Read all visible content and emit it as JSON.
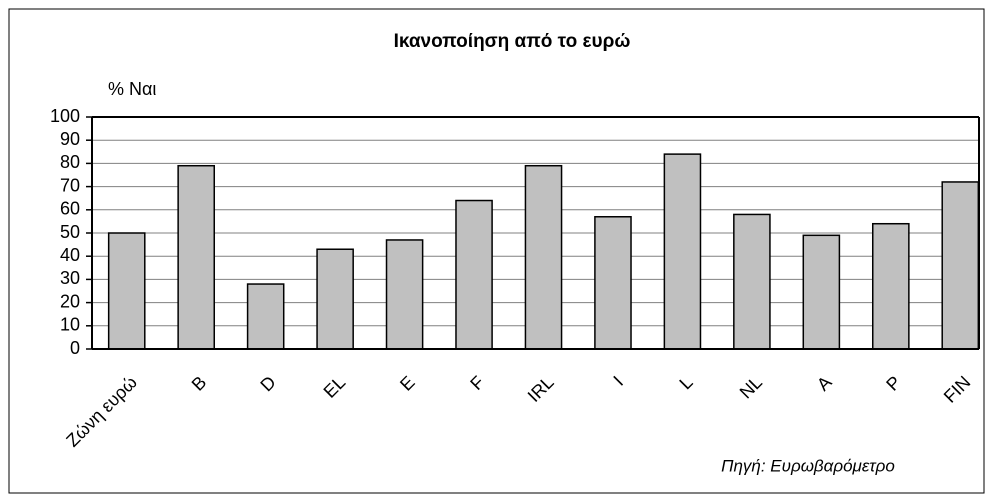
{
  "chart_data": {
    "type": "bar",
    "title": "Ικανοποίηση από το ευρώ",
    "y_label": "% Ναι",
    "categories": [
      "Ζώνη ευρώ",
      "B",
      "D",
      "EL",
      "E",
      "F",
      "IRL",
      "I",
      "L",
      "NL",
      "A",
      "P",
      "FIN"
    ],
    "values": [
      50,
      79,
      28,
      43,
      47,
      64,
      79,
      57,
      84,
      58,
      49,
      54,
      72
    ],
    "color": "#c0c0c0",
    "ylim": [
      0,
      100
    ],
    "yticks": [
      0,
      10,
      20,
      30,
      40,
      50,
      60,
      70,
      80,
      90,
      100
    ],
    "grid": true,
    "source": "Πηγή: Ευρωβαρόμετρο"
  }
}
